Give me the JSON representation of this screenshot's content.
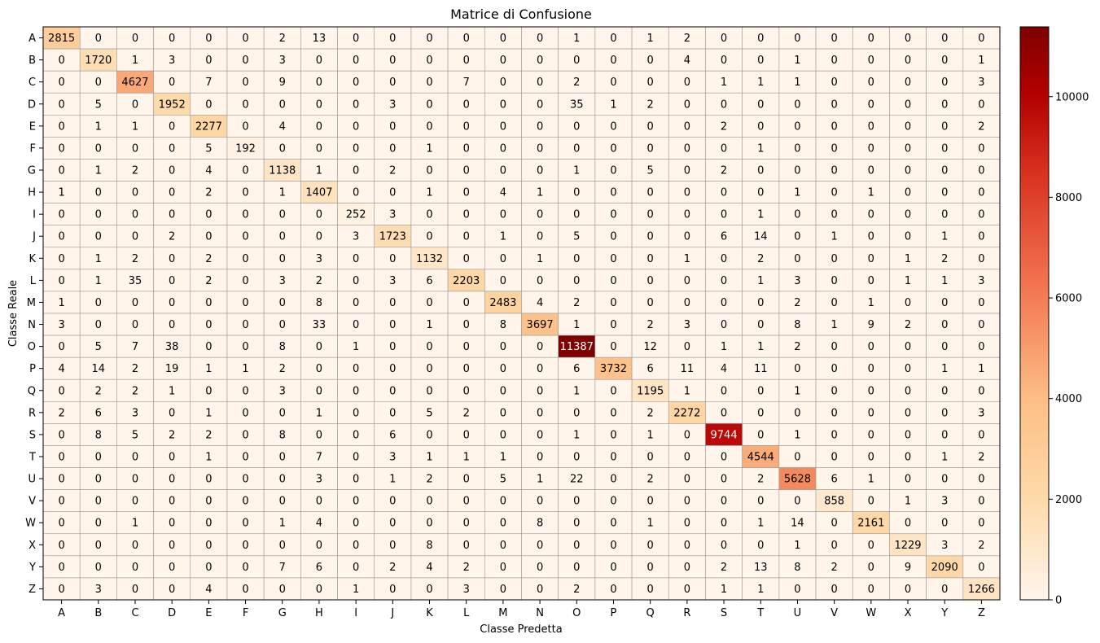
{
  "chart_data": {
    "type": "heatmap",
    "title": "Matrice di Confusione",
    "xlabel": "Classe Predetta",
    "ylabel": "Classe Reale",
    "x_categories": [
      "A",
      "B",
      "C",
      "D",
      "E",
      "F",
      "G",
      "H",
      "I",
      "J",
      "K",
      "L",
      "M",
      "N",
      "O",
      "P",
      "Q",
      "R",
      "S",
      "T",
      "U",
      "V",
      "W",
      "X",
      "Y",
      "Z"
    ],
    "y_categories": [
      "A",
      "B",
      "C",
      "D",
      "E",
      "F",
      "G",
      "H",
      "I",
      "J",
      "K",
      "L",
      "M",
      "N",
      "O",
      "P",
      "Q",
      "R",
      "S",
      "T",
      "U",
      "V",
      "W",
      "X",
      "Y",
      "Z"
    ],
    "matrix": [
      [
        2815,
        0,
        0,
        0,
        0,
        0,
        2,
        13,
        0,
        0,
        0,
        0,
        0,
        0,
        1,
        0,
        1,
        2,
        0,
        0,
        0,
        0,
        0,
        0,
        0,
        0
      ],
      [
        0,
        1720,
        1,
        3,
        0,
        0,
        3,
        0,
        0,
        0,
        0,
        0,
        0,
        0,
        0,
        0,
        0,
        4,
        0,
        0,
        1,
        0,
        0,
        0,
        0,
        1
      ],
      [
        0,
        0,
        4627,
        0,
        7,
        0,
        9,
        0,
        0,
        0,
        0,
        7,
        0,
        0,
        2,
        0,
        0,
        0,
        1,
        1,
        1,
        0,
        0,
        0,
        0,
        3
      ],
      [
        0,
        5,
        0,
        1952,
        0,
        0,
        0,
        0,
        0,
        3,
        0,
        0,
        0,
        0,
        35,
        1,
        2,
        0,
        0,
        0,
        0,
        0,
        0,
        0,
        0,
        0
      ],
      [
        0,
        1,
        1,
        0,
        2277,
        0,
        4,
        0,
        0,
        0,
        0,
        0,
        0,
        0,
        0,
        0,
        0,
        0,
        2,
        0,
        0,
        0,
        0,
        0,
        0,
        2
      ],
      [
        0,
        0,
        0,
        0,
        5,
        192,
        0,
        0,
        0,
        0,
        1,
        0,
        0,
        0,
        0,
        0,
        0,
        0,
        0,
        1,
        0,
        0,
        0,
        0,
        0,
        0
      ],
      [
        0,
        1,
        2,
        0,
        4,
        0,
        1138,
        1,
        0,
        2,
        0,
        0,
        0,
        0,
        1,
        0,
        5,
        0,
        2,
        0,
        0,
        0,
        0,
        0,
        0,
        0
      ],
      [
        1,
        0,
        0,
        0,
        2,
        0,
        1,
        1407,
        0,
        0,
        1,
        0,
        4,
        1,
        0,
        0,
        0,
        0,
        0,
        0,
        1,
        0,
        1,
        0,
        0,
        0
      ],
      [
        0,
        0,
        0,
        0,
        0,
        0,
        0,
        0,
        252,
        3,
        0,
        0,
        0,
        0,
        0,
        0,
        0,
        0,
        0,
        1,
        0,
        0,
        0,
        0,
        0,
        0
      ],
      [
        0,
        0,
        0,
        2,
        0,
        0,
        0,
        0,
        3,
        1723,
        0,
        0,
        1,
        0,
        5,
        0,
        0,
        0,
        6,
        14,
        0,
        1,
        0,
        0,
        1,
        0
      ],
      [
        0,
        1,
        2,
        0,
        2,
        0,
        0,
        3,
        0,
        0,
        1132,
        0,
        0,
        1,
        0,
        0,
        0,
        1,
        0,
        2,
        0,
        0,
        0,
        1,
        2,
        0
      ],
      [
        0,
        1,
        35,
        0,
        2,
        0,
        3,
        2,
        0,
        3,
        6,
        2203,
        0,
        0,
        0,
        0,
        0,
        0,
        0,
        1,
        3,
        0,
        0,
        1,
        1,
        3
      ],
      [
        1,
        0,
        0,
        0,
        0,
        0,
        0,
        8,
        0,
        0,
        0,
        0,
        2483,
        4,
        2,
        0,
        0,
        0,
        0,
        0,
        2,
        0,
        1,
        0,
        0,
        0
      ],
      [
        3,
        0,
        0,
        0,
        0,
        0,
        0,
        33,
        0,
        0,
        1,
        0,
        8,
        3697,
        1,
        0,
        2,
        3,
        0,
        0,
        8,
        1,
        9,
        2,
        0,
        0
      ],
      [
        0,
        5,
        7,
        38,
        0,
        0,
        8,
        0,
        1,
        0,
        0,
        0,
        0,
        0,
        11387,
        0,
        12,
        0,
        1,
        1,
        2,
        0,
        0,
        0,
        0,
        0
      ],
      [
        4,
        14,
        2,
        19,
        1,
        1,
        2,
        0,
        0,
        0,
        0,
        0,
        0,
        0,
        6,
        3732,
        6,
        11,
        4,
        11,
        0,
        0,
        0,
        0,
        1,
        1
      ],
      [
        0,
        2,
        2,
        1,
        0,
        0,
        3,
        0,
        0,
        0,
        0,
        0,
        0,
        0,
        1,
        0,
        1195,
        1,
        0,
        0,
        1,
        0,
        0,
        0,
        0,
        0
      ],
      [
        2,
        6,
        3,
        0,
        1,
        0,
        0,
        1,
        0,
        0,
        5,
        2,
        0,
        0,
        0,
        0,
        2,
        2272,
        0,
        0,
        0,
        0,
        0,
        0,
        0,
        3
      ],
      [
        0,
        8,
        5,
        2,
        2,
        0,
        8,
        0,
        0,
        6,
        0,
        0,
        0,
        0,
        1,
        0,
        1,
        0,
        9744,
        0,
        1,
        0,
        0,
        0,
        0,
        0
      ],
      [
        0,
        0,
        0,
        0,
        1,
        0,
        0,
        7,
        0,
        3,
        1,
        1,
        1,
        0,
        0,
        0,
        0,
        0,
        0,
        4544,
        0,
        0,
        0,
        0,
        1,
        2
      ],
      [
        0,
        0,
        0,
        0,
        0,
        0,
        0,
        3,
        0,
        1,
        2,
        0,
        5,
        1,
        22,
        0,
        2,
        0,
        0,
        2,
        5628,
        6,
        1,
        0,
        0,
        0
      ],
      [
        0,
        0,
        0,
        0,
        0,
        0,
        0,
        0,
        0,
        0,
        0,
        0,
        0,
        0,
        0,
        0,
        0,
        0,
        0,
        0,
        0,
        858,
        0,
        1,
        3,
        0
      ],
      [
        0,
        0,
        1,
        0,
        0,
        0,
        1,
        4,
        0,
        0,
        0,
        0,
        0,
        8,
        0,
        0,
        1,
        0,
        0,
        1,
        14,
        0,
        2161,
        0,
        0,
        0
      ],
      [
        0,
        0,
        0,
        0,
        0,
        0,
        0,
        0,
        0,
        0,
        8,
        0,
        0,
        0,
        0,
        0,
        0,
        0,
        0,
        0,
        1,
        0,
        0,
        1229,
        3,
        2
      ],
      [
        0,
        0,
        0,
        0,
        0,
        0,
        7,
        6,
        0,
        2,
        4,
        2,
        0,
        0,
        0,
        0,
        0,
        0,
        2,
        13,
        8,
        2,
        0,
        9,
        2090,
        0
      ],
      [
        0,
        3,
        0,
        0,
        4,
        0,
        0,
        0,
        1,
        0,
        0,
        3,
        0,
        0,
        2,
        0,
        0,
        0,
        1,
        1,
        0,
        0,
        0,
        0,
        0,
        1266
      ]
    ],
    "colorbar": {
      "min": 0,
      "max": 11387,
      "ticks": [
        0,
        2000,
        4000,
        6000,
        8000,
        10000
      ],
      "colormap": "OrRd-like",
      "stops": [
        "#fff5eb",
        "#fdd9a8",
        "#fdbe85",
        "#f2744f",
        "#d7301f",
        "#b30000",
        "#7f0000"
      ]
    },
    "grid": true,
    "cell_border_color": "#999999"
  }
}
